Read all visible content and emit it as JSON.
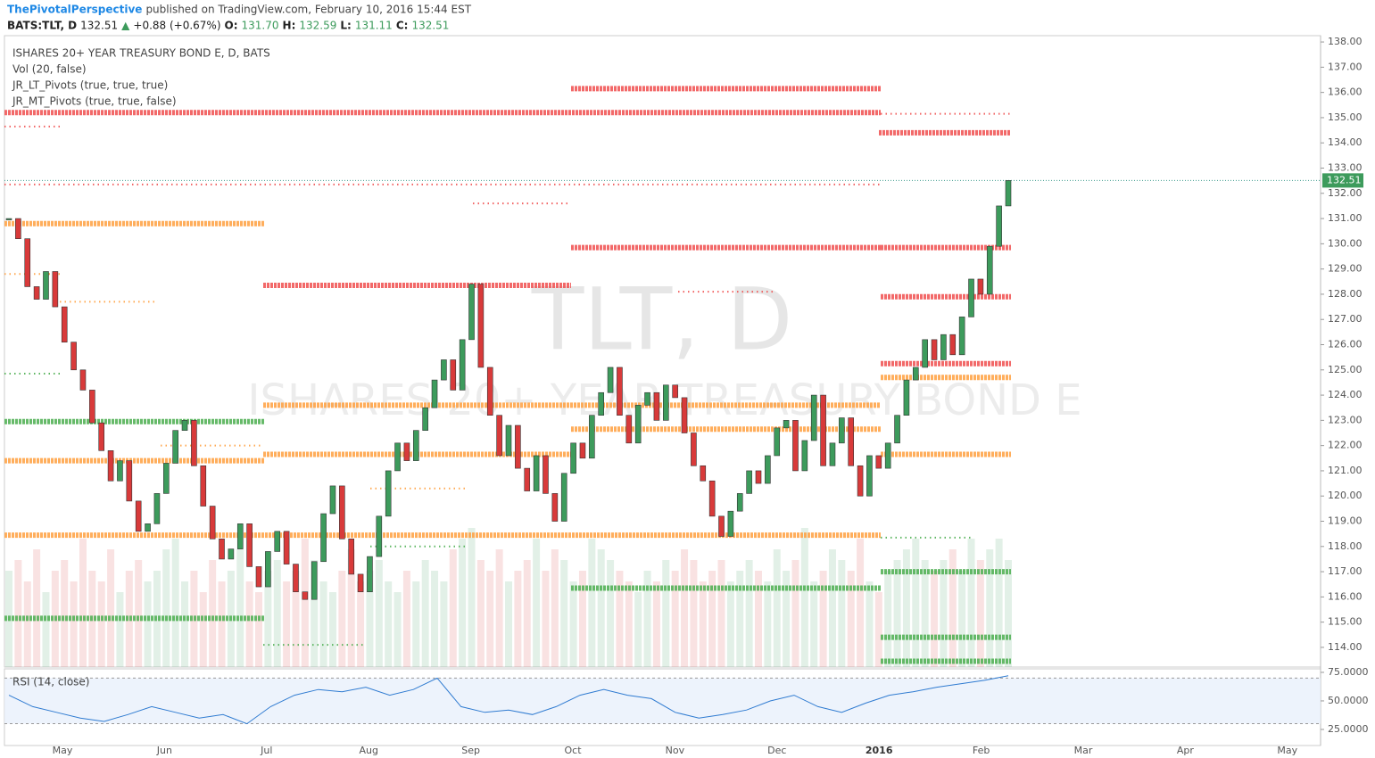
{
  "header": {
    "author": "ThePivotalPerspective",
    "published": "published on TradingView.com, February 10, 2016 15:44 EST"
  },
  "chart_data": {
    "type": "candlestick",
    "symbol": "BATS:TLT, D",
    "last": 132.51,
    "change_arrow": "▲",
    "change": "+0.88 (+0.67%)",
    "ohlc_labels": [
      "O:",
      "H:",
      "L:",
      "C:"
    ],
    "ohlc": [
      {
        "value": 131.7,
        "label": "131.70"
      },
      132.59,
      131.11,
      132.51
    ],
    "legend": [
      "ISHARES 20+ YEAR TREASURY BOND E, D, BATS",
      "Vol (20, false)",
      "JR_LT_Pivots (true, true, true)",
      "JR_MT_Pivots (true, true, false)"
    ],
    "watermark": "TLT, D",
    "watermark_sub": "ISHARES 20+ YEAR TREASURY BOND E",
    "categories": [
      "May",
      "Jun",
      "Jul",
      "Aug",
      "Sep",
      "Oct",
      "Nov",
      "Dec",
      "2016",
      "Feb",
      "Mar",
      "Apr",
      "May"
    ],
    "up_color": "#3d9b5c",
    "down_color": "#d83a3a",
    "closes": [
      131.0,
      130.2,
      128.3,
      127.8,
      128.9,
      127.5,
      126.1,
      125.0,
      124.2,
      122.9,
      121.8,
      120.6,
      121.4,
      119.8,
      118.6,
      118.9,
      120.1,
      121.3,
      122.6,
      123.0,
      121.2,
      119.6,
      118.3,
      117.5,
      117.9,
      118.9,
      117.2,
      116.4,
      117.8,
      118.6,
      117.3,
      116.2,
      115.9,
      117.4,
      119.3,
      120.4,
      118.3,
      116.9,
      116.2,
      117.6,
      119.2,
      121.0,
      122.1,
      121.4,
      122.6,
      123.5,
      124.6,
      125.4,
      124.2,
      126.2,
      128.4,
      125.1,
      123.2,
      121.6,
      122.8,
      121.1,
      120.2,
      121.6,
      120.1,
      119.0,
      120.9,
      122.1,
      121.5,
      123.2,
      124.1,
      125.1,
      123.2,
      122.1,
      123.6,
      124.1,
      123.0,
      124.4,
      123.9,
      122.5,
      121.2,
      120.6,
      119.2,
      118.4,
      119.4,
      120.1,
      121.0,
      120.5,
      121.6,
      122.7,
      123.0,
      121.0,
      122.2,
      124.0,
      121.2,
      122.1,
      123.1,
      121.2,
      120.0,
      121.6,
      121.1,
      122.1,
      123.2,
      124.6,
      125.1,
      126.2,
      125.4,
      126.4,
      125.6,
      127.1,
      128.6,
      128.0,
      129.9,
      131.5,
      132.51
    ],
    "volume": [
      9,
      10,
      8,
      11,
      7,
      9,
      10,
      8,
      12,
      9,
      8,
      11,
      7,
      9,
      10,
      8,
      9,
      11,
      12,
      8,
      9,
      7,
      10,
      8,
      9,
      11,
      8,
      7,
      9,
      10,
      8,
      9,
      12,
      10,
      8,
      7,
      9,
      11,
      8,
      9,
      10,
      8,
      7,
      9,
      8,
      10,
      9,
      8,
      11,
      12,
      13,
      10,
      9,
      11,
      8,
      9,
      10,
      12,
      9,
      11,
      10,
      8,
      9,
      12,
      11,
      10,
      9,
      8,
      7,
      9,
      8,
      10,
      9,
      11,
      10,
      8,
      9,
      10,
      8,
      9,
      10,
      9,
      8,
      11,
      9,
      10,
      13,
      8,
      9,
      11,
      10,
      9,
      12,
      8,
      7,
      9,
      10,
      11,
      12,
      10,
      9,
      10,
      11,
      9,
      12,
      10,
      11,
      12,
      10
    ],
    "ylim": [
      113.22,
      138.25
    ],
    "yticks": [
      {
        "value": 114,
        "label": "114.00"
      },
      {
        "value": 115,
        "label": "115.00"
      },
      {
        "value": 116,
        "label": "116.00"
      },
      {
        "value": 117,
        "label": "117.00"
      },
      {
        "value": 118,
        "label": "118.00"
      },
      {
        "value": 119,
        "label": "119.00"
      },
      {
        "value": 120,
        "label": "120.00"
      },
      {
        "value": 121,
        "label": "121.00"
      },
      {
        "value": 122,
        "label": "122.00"
      },
      {
        "value": 123,
        "label": "123.00"
      },
      {
        "value": 124,
        "label": "124.00"
      },
      {
        "value": 125,
        "label": "125.00"
      },
      {
        "value": 126,
        "label": "126.00"
      },
      {
        "value": 127,
        "label": "127.00"
      },
      {
        "value": 128,
        "label": "128.00"
      },
      {
        "value": 129,
        "label": "129.00"
      },
      {
        "value": 130,
        "label": "130.00"
      },
      {
        "value": 131,
        "label": "131.00"
      },
      {
        "value": 132,
        "label": "132.00"
      },
      {
        "value": 133,
        "label": "133.00"
      },
      {
        "value": 134,
        "label": "134.00"
      },
      {
        "value": 135,
        "label": "135.00"
      },
      {
        "value": 136,
        "label": "136.00"
      },
      {
        "value": 137,
        "label": "137.00"
      },
      {
        "value": 138,
        "label": "138.00"
      }
    ],
    "pivots": [
      {
        "value": 135.2,
        "color": "#f05050"
      },
      {
        "value": 136.15,
        "color": "#f05050"
      },
      {
        "value": 134.4,
        "color": "#f05050"
      },
      {
        "value": 129.85,
        "color": "#f05050"
      },
      {
        "value": 129.85,
        "color": "#f05050"
      },
      {
        "value": 128.35,
        "color": "#f05050"
      },
      {
        "value": 127.9,
        "color": "#f05050"
      },
      {
        "value": 125.25,
        "color": "#f05050"
      },
      {
        "value": 132.35,
        "color": "#f05050"
      },
      {
        "value": 135.15,
        "color": "#f05050"
      },
      {
        "value": 134.65,
        "color": "#f05050"
      },
      {
        "value": 131.6,
        "color": "#f05050"
      },
      {
        "value": 128.1,
        "color": "#f05050"
      },
      {
        "value": 130.8,
        "color": "#ffa040"
      },
      {
        "value": 121.4,
        "color": "#ffa040"
      },
      {
        "value": 121.65,
        "color": "#ffa040"
      },
      {
        "value": 118.45,
        "color": "#ffa040"
      },
      {
        "value": 123.6,
        "color": "#ffa040"
      },
      {
        "value": 122.65,
        "color": "#ffa040"
      },
      {
        "value": 124.7,
        "color": "#ffa040"
      },
      {
        "value": 121.65,
        "color": "#ffa040"
      },
      {
        "value": 128.8,
        "color": "#ffa040"
      },
      {
        "value": 127.7,
        "color": "#ffa040"
      },
      {
        "value": 122.0,
        "color": "#ffa040"
      },
      {
        "value": 120.3,
        "color": "#ffa040"
      },
      {
        "value": 122.95,
        "color": "#4caf50"
      },
      {
        "value": 115.15,
        "color": "#4caf50"
      },
      {
        "value": 116.35,
        "color": "#4caf50"
      },
      {
        "value": 117.0,
        "color": "#4caf50"
      },
      {
        "value": 114.4,
        "color": "#4caf50"
      },
      {
        "value": 113.45,
        "color": "#4caf50"
      },
      {
        "value": 124.85,
        "color": "#4caf50"
      },
      {
        "value": 118.0,
        "color": "#4caf50"
      },
      {
        "value": 118.35,
        "color": "#4caf50"
      },
      {
        "value": 114.1,
        "color": "#4caf50"
      }
    ],
    "rsi": {
      "title": "RSI (14, close)",
      "color": "#2f7bd1",
      "values": [
        55,
        45,
        40,
        35,
        32,
        38,
        45,
        40,
        35,
        38,
        30,
        45,
        55,
        60,
        58,
        62,
        55,
        60,
        70,
        45,
        40,
        42,
        38,
        45,
        55,
        60,
        55,
        52,
        40,
        35,
        38,
        42,
        50,
        55,
        45,
        40,
        48,
        55,
        58,
        62,
        65,
        68,
        72
      ],
      "ylim": [
        10.9,
        78.1
      ],
      "yticks": [
        {
          "value": 75,
          "label": "75.0000"
        },
        {
          "value": 50,
          "label": "50.0000"
        },
        {
          "value": 25,
          "label": "25.0000"
        }
      ],
      "bands": [
        30,
        70
      ]
    }
  }
}
